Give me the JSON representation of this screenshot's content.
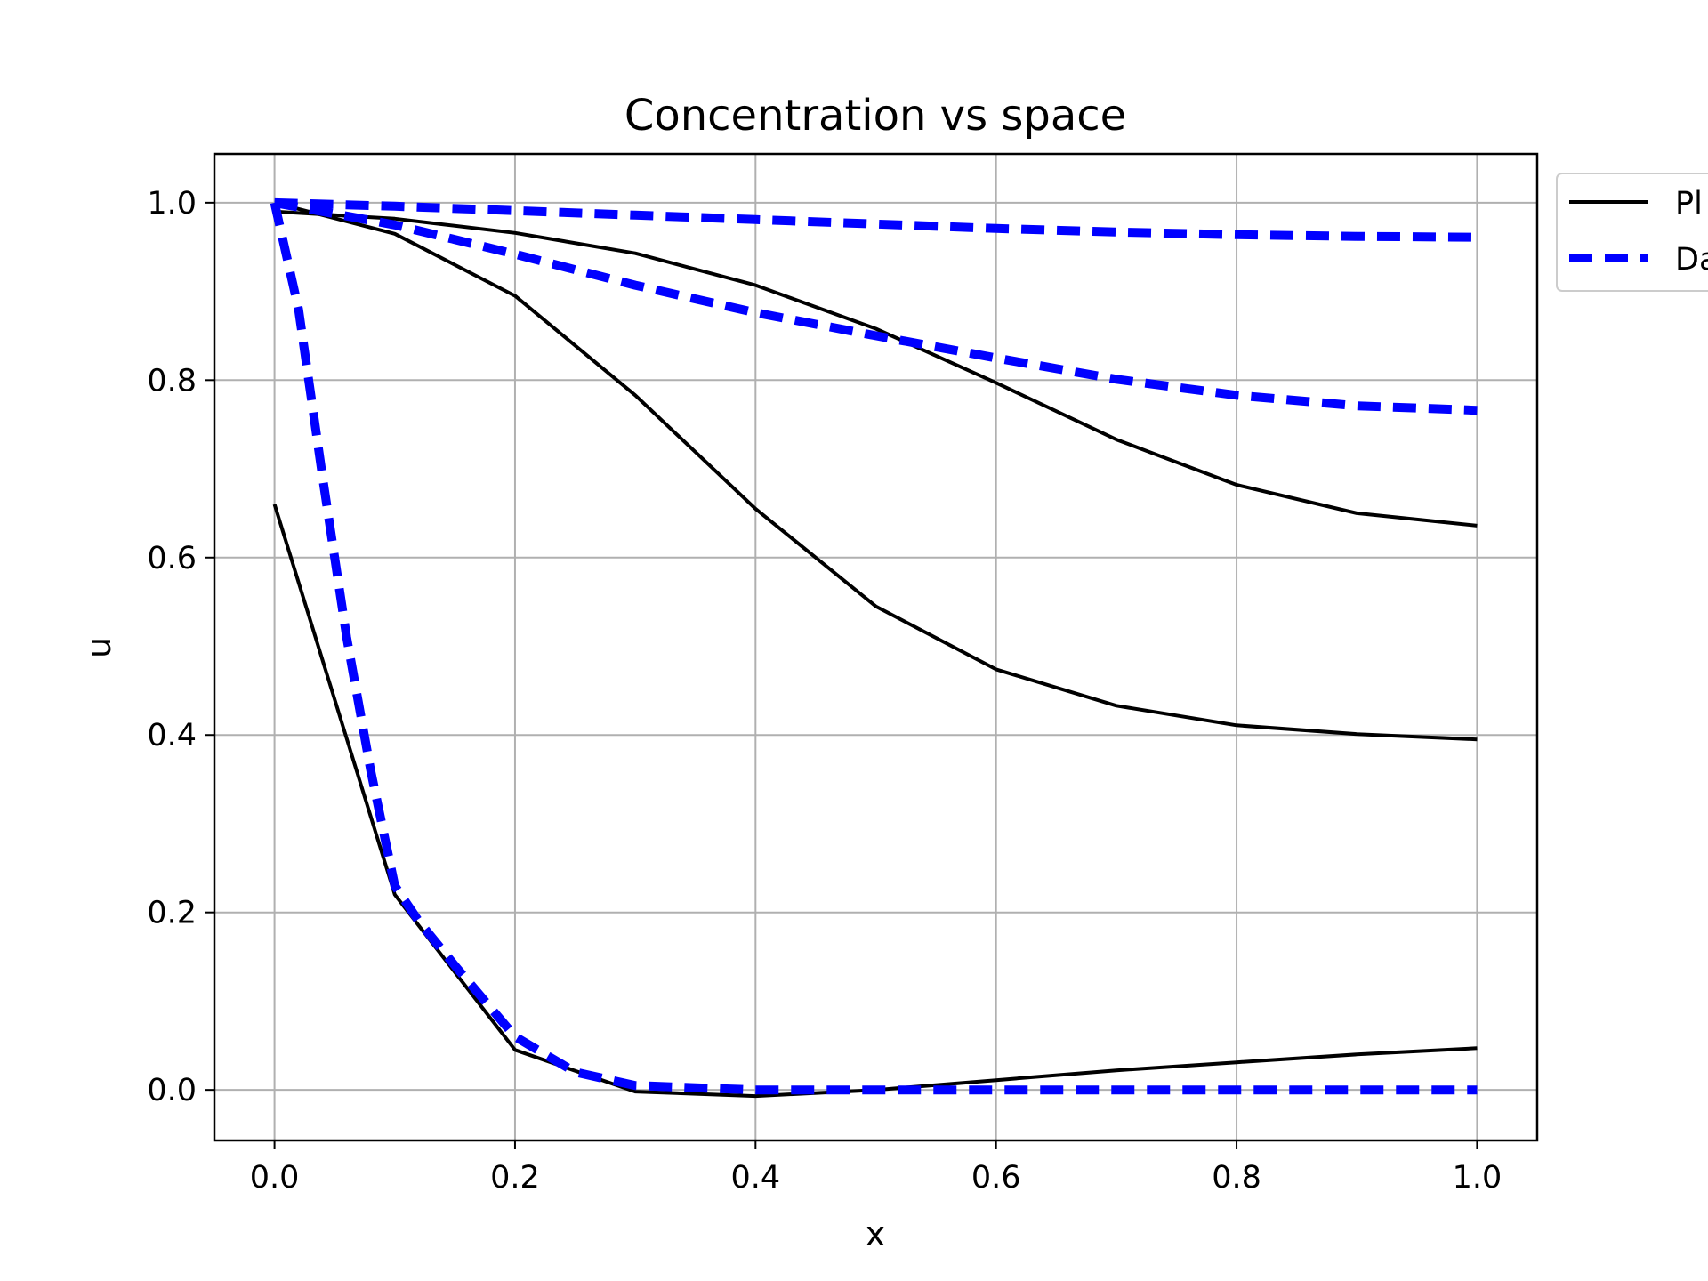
{
  "chart_data": {
    "type": "line",
    "title": "Concentration vs space",
    "xlabel": "x",
    "ylabel": "u",
    "xlim": [
      -0.05,
      1.05
    ],
    "ylim": [
      -0.057,
      1.055
    ],
    "x_ticks": [
      "0.0",
      "0.2",
      "0.4",
      "0.6",
      "0.8",
      "1.0"
    ],
    "y_ticks": [
      "0.0",
      "0.2",
      "0.4",
      "0.6",
      "0.8",
      "1.0"
    ],
    "grid": true,
    "legend_position": "outside top-right (clipped)",
    "legend": [
      {
        "label": "Pl",
        "style": "solid",
        "color": "#000000"
      },
      {
        "label": "Da",
        "style": "dashed",
        "color": "#0000ff"
      }
    ],
    "series": [
      {
        "group": "Pl",
        "style": "solid",
        "color": "#000000",
        "x": [
          0,
          0.1,
          0.2,
          0.3,
          0.4,
          0.5,
          0.6,
          0.7,
          0.8,
          0.9,
          1.0
        ],
        "y": [
          0.66,
          0.22,
          0.045,
          -0.002,
          -0.007,
          0.0,
          0.011,
          0.022,
          0.031,
          0.04,
          0.047
        ]
      },
      {
        "group": "Pl",
        "style": "solid",
        "color": "#000000",
        "x": [
          0,
          0.1,
          0.2,
          0.3,
          0.4,
          0.5,
          0.6,
          0.7,
          0.8,
          0.9,
          1.0
        ],
        "y": [
          1.0,
          0.965,
          0.895,
          0.783,
          0.655,
          0.545,
          0.474,
          0.433,
          0.411,
          0.401,
          0.395
        ]
      },
      {
        "group": "Pl",
        "style": "solid",
        "color": "#000000",
        "x": [
          0,
          0.1,
          0.2,
          0.3,
          0.4,
          0.5,
          0.6,
          0.7,
          0.8,
          0.9,
          1.0
        ],
        "y": [
          0.99,
          0.982,
          0.966,
          0.943,
          0.907,
          0.858,
          0.797,
          0.733,
          0.682,
          0.65,
          0.636
        ]
      },
      {
        "group": "Da",
        "style": "dashed",
        "color": "#0000ff",
        "x": [
          0,
          0.02,
          0.04,
          0.06,
          0.08,
          0.1,
          0.12,
          0.15,
          0.2,
          0.25,
          0.3,
          0.4,
          0.5,
          0.6,
          0.7,
          0.8,
          0.9,
          1.0
        ],
        "y": [
          1.0,
          0.88,
          0.69,
          0.51,
          0.36,
          0.23,
          0.19,
          0.14,
          0.06,
          0.02,
          0.005,
          0.0,
          0.0,
          0.0,
          0.0,
          0.0,
          0.0,
          0.0
        ]
      },
      {
        "group": "Da",
        "style": "dashed",
        "color": "#0000ff",
        "x": [
          0,
          0.1,
          0.2,
          0.3,
          0.4,
          0.5,
          0.6,
          0.7,
          0.8,
          0.9,
          1.0
        ],
        "y": [
          1.0,
          0.975,
          0.942,
          0.907,
          0.876,
          0.85,
          0.825,
          0.801,
          0.783,
          0.771,
          0.766
        ]
      },
      {
        "group": "Da",
        "style": "dashed",
        "color": "#0000ff",
        "x": [
          0,
          0.1,
          0.2,
          0.3,
          0.4,
          0.5,
          0.6,
          0.7,
          0.8,
          0.9,
          1.0
        ],
        "y": [
          1.0,
          0.996,
          0.991,
          0.986,
          0.981,
          0.976,
          0.971,
          0.967,
          0.964,
          0.962,
          0.961
        ]
      }
    ]
  }
}
